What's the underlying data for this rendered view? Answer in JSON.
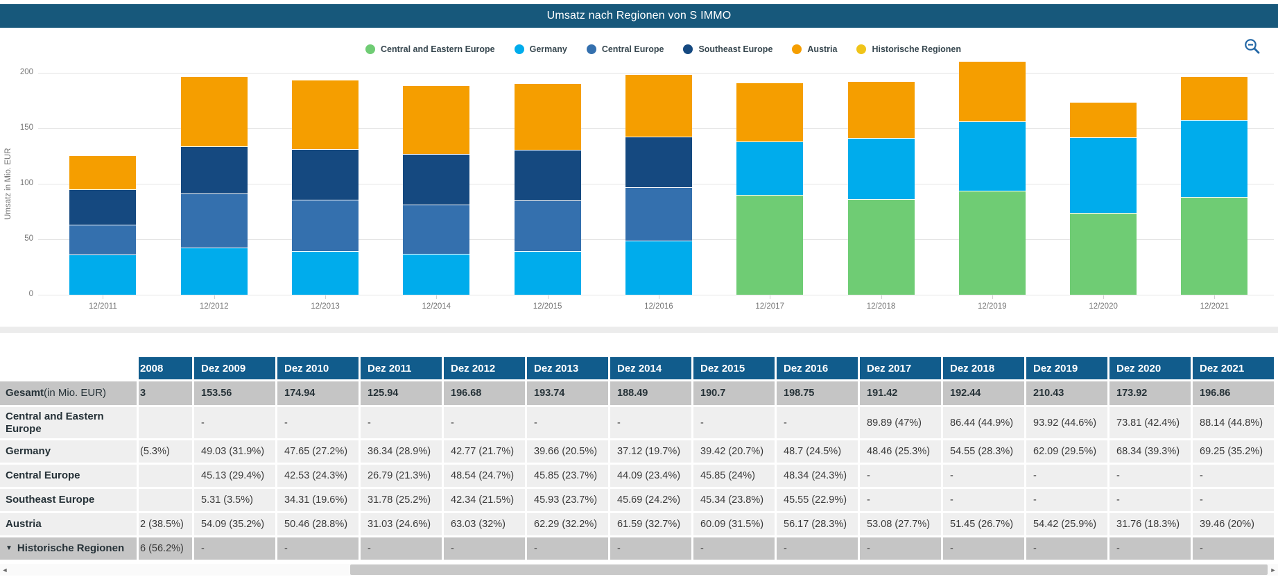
{
  "header": {
    "title": "Umsatz nach Regionen von S IMMO"
  },
  "toolbar": {
    "zoom_out_icon": "zoom-out-magnifier"
  },
  "colors": {
    "title_bar": "#17587B",
    "table_header_bg": "#115C8C",
    "total_row_bg": "#C5C5C5",
    "data_row_bg": "#EFEFEF",
    "grid_line": "#E4E4E4",
    "axis_text": "#757575",
    "legend_text": "#37474F",
    "icon_blue": "#2166A5",
    "scroll_thumb": "#C8C8C8"
  },
  "chart_data": {
    "type": "bar",
    "stacked": true,
    "title": "Umsatz nach Regionen von S IMMO",
    "xlabel": "",
    "ylabel": "Umsatz in Mio. EUR",
    "ylim": [
      0,
      200
    ],
    "yticks": [
      0,
      50,
      100,
      150,
      200
    ],
    "grid": true,
    "legend_position": "top-center",
    "categories": [
      "12/2011",
      "12/2012",
      "12/2013",
      "12/2014",
      "12/2015",
      "12/2016",
      "12/2017",
      "12/2018",
      "12/2019",
      "12/2020",
      "12/2021"
    ],
    "series": [
      {
        "name": "Central and Eastern Europe",
        "color": "#6FCC74",
        "values": [
          null,
          null,
          null,
          null,
          null,
          null,
          89.89,
          86.44,
          93.92,
          73.81,
          88.14
        ]
      },
      {
        "name": "Germany",
        "color": "#00ACEC",
        "values": [
          36.34,
          42.77,
          39.66,
          37.12,
          39.42,
          48.7,
          48.46,
          54.55,
          62.09,
          68.34,
          69.25
        ]
      },
      {
        "name": "Central Europe",
        "color": "#3470AE",
        "values": [
          26.79,
          48.54,
          45.85,
          44.09,
          45.85,
          48.34,
          null,
          null,
          null,
          null,
          null
        ]
      },
      {
        "name": "Southeast Europe",
        "color": "#154980",
        "values": [
          31.78,
          42.34,
          45.93,
          45.69,
          45.34,
          45.55,
          null,
          null,
          null,
          null,
          null
        ]
      },
      {
        "name": "Austria",
        "color": "#F59E00",
        "values": [
          31.03,
          63.03,
          62.29,
          61.59,
          60.09,
          56.17,
          53.08,
          51.45,
          54.42,
          31.76,
          39.46
        ]
      },
      {
        "name": "Historische Regionen",
        "color": "#F0C419",
        "values": [
          null,
          null,
          null,
          null,
          null,
          null,
          null,
          null,
          null,
          null,
          null
        ]
      }
    ],
    "totals": [
      125.94,
      196.68,
      193.74,
      188.49,
      190.7,
      198.75,
      191.42,
      192.44,
      210.43,
      173.92,
      196.86
    ]
  },
  "table": {
    "col_headers": [
      "",
      "2008",
      "Dez 2009",
      "Dez 2010",
      "Dez 2011",
      "Dez 2012",
      "Dez 2013",
      "Dez 2014",
      "Dez 2015",
      "Dez 2016",
      "Dez 2017",
      "Dez 2018",
      "Dez 2019",
      "Dez 2020",
      "Dez 2021"
    ],
    "rows": [
      {
        "label": "Gesamt",
        "label_suffix": " (in Mio. EUR)",
        "style": "total",
        "collapsible": false,
        "values": [
          "3",
          "153.56",
          "174.94",
          "125.94",
          "196.68",
          "193.74",
          "188.49",
          "190.7",
          "198.75",
          "191.42",
          "192.44",
          "210.43",
          "173.92",
          "196.86"
        ]
      },
      {
        "label": "Central and Eastern Europe",
        "label_suffix": "",
        "style": "normal",
        "collapsible": false,
        "values": [
          "",
          "-",
          "-",
          "-",
          "-",
          "-",
          "-",
          "-",
          "-",
          "89.89 (47%)",
          "86.44 (44.9%)",
          "93.92 (44.6%)",
          "73.81 (42.4%)",
          "88.14 (44.8%)"
        ]
      },
      {
        "label": "Germany",
        "label_suffix": "",
        "style": "normal",
        "collapsible": false,
        "values": [
          "(5.3%)",
          "49.03 (31.9%)",
          "47.65 (27.2%)",
          "36.34 (28.9%)",
          "42.77 (21.7%)",
          "39.66 (20.5%)",
          "37.12 (19.7%)",
          "39.42 (20.7%)",
          "48.7 (24.5%)",
          "48.46 (25.3%)",
          "54.55 (28.3%)",
          "62.09 (29.5%)",
          "68.34 (39.3%)",
          "69.25 (35.2%)"
        ]
      },
      {
        "label": "Central Europe",
        "label_suffix": "",
        "style": "normal",
        "collapsible": false,
        "values": [
          "",
          "45.13 (29.4%)",
          "42.53 (24.3%)",
          "26.79 (21.3%)",
          "48.54 (24.7%)",
          "45.85 (23.7%)",
          "44.09 (23.4%)",
          "45.85 (24%)",
          "48.34 (24.3%)",
          "-",
          "-",
          "-",
          "-",
          "-"
        ]
      },
      {
        "label": "Southeast Europe",
        "label_suffix": "",
        "style": "normal",
        "collapsible": false,
        "values": [
          "",
          "5.31 (3.5%)",
          "34.31 (19.6%)",
          "31.78 (25.2%)",
          "42.34 (21.5%)",
          "45.93 (23.7%)",
          "45.69 (24.2%)",
          "45.34 (23.8%)",
          "45.55 (22.9%)",
          "-",
          "-",
          "-",
          "-",
          "-"
        ]
      },
      {
        "label": "Austria",
        "label_suffix": "",
        "style": "normal",
        "collapsible": false,
        "values": [
          "2 (38.5%)",
          "54.09 (35.2%)",
          "50.46 (28.8%)",
          "31.03 (24.6%)",
          "63.03 (32%)",
          "62.29 (32.2%)",
          "61.59 (32.7%)",
          "60.09 (31.5%)",
          "56.17 (28.3%)",
          "53.08 (27.7%)",
          "51.45 (26.7%)",
          "54.42 (25.9%)",
          "31.76 (18.3%)",
          "39.46 (20%)"
        ]
      },
      {
        "label": "Historische Regionen",
        "label_suffix": "",
        "style": "total",
        "collapsible": true,
        "values": [
          "6 (56.2%)",
          "-",
          "-",
          "-",
          "-",
          "-",
          "-",
          "-",
          "-",
          "-",
          "-",
          "-",
          "-",
          "-"
        ]
      }
    ]
  },
  "scrollbar": {
    "left_icon": "◄",
    "right_icon": "►"
  }
}
